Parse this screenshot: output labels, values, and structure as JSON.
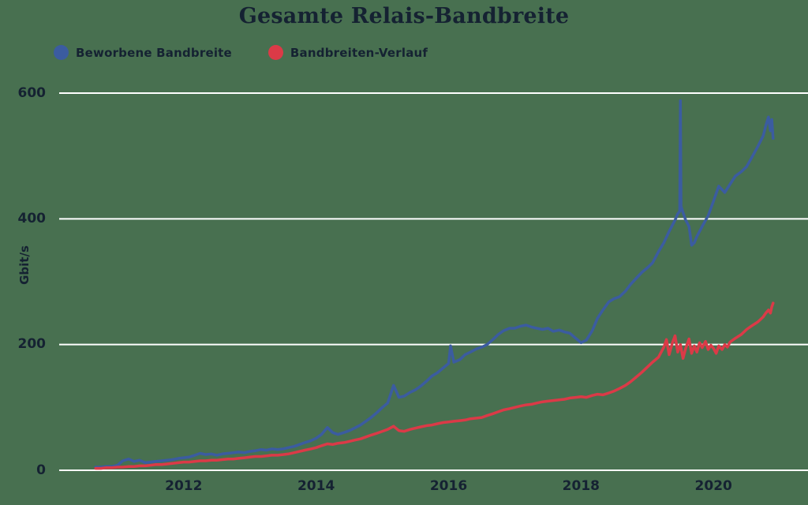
{
  "title": "Gesamte Relais-Bandbreite",
  "colors": {
    "background": "#487050",
    "text": "#152232",
    "grid": "#FFFFFF",
    "advertised_line": "#3B5CA0",
    "history_line": "#DB3A47"
  },
  "chart_data": {
    "type": "line",
    "title": "Gesamte Relais-Bandbreite",
    "xlabel": "",
    "ylabel": "Gbit/s",
    "x_ticks": [
      2012,
      2014,
      2016,
      2018,
      2020
    ],
    "y_ticks": [
      0,
      200,
      400,
      600
    ],
    "xlim": [
      2010.12,
      2021.32
    ],
    "ylim": [
      0,
      600
    ],
    "grid": "horizontal-only",
    "legend_position": "top-left",
    "series": [
      {
        "name": "Beworbene Bandbreite",
        "color": "#3B5CA0",
        "points": [
          [
            2010.67,
            5
          ],
          [
            2010.75,
            5
          ],
          [
            2010.83,
            6
          ],
          [
            2010.92,
            6
          ],
          [
            2011.0,
            8
          ],
          [
            2011.08,
            15
          ],
          [
            2011.17,
            18
          ],
          [
            2011.25,
            14
          ],
          [
            2011.33,
            16
          ],
          [
            2011.42,
            12
          ],
          [
            2011.5,
            13
          ],
          [
            2011.58,
            14
          ],
          [
            2011.67,
            15
          ],
          [
            2011.75,
            16
          ],
          [
            2011.83,
            17
          ],
          [
            2011.92,
            19
          ],
          [
            2012.0,
            20
          ],
          [
            2012.08,
            21
          ],
          [
            2012.17,
            24
          ],
          [
            2012.25,
            27
          ],
          [
            2012.33,
            25
          ],
          [
            2012.42,
            26
          ],
          [
            2012.5,
            24
          ],
          [
            2012.58,
            26
          ],
          [
            2012.67,
            27
          ],
          [
            2012.75,
            28
          ],
          [
            2012.83,
            29
          ],
          [
            2012.92,
            28
          ],
          [
            2013.0,
            30
          ],
          [
            2013.08,
            31
          ],
          [
            2013.17,
            33
          ],
          [
            2013.25,
            32
          ],
          [
            2013.33,
            34
          ],
          [
            2013.42,
            33
          ],
          [
            2013.5,
            34
          ],
          [
            2013.58,
            36
          ],
          [
            2013.67,
            38
          ],
          [
            2013.75,
            41
          ],
          [
            2013.83,
            44
          ],
          [
            2013.92,
            47
          ],
          [
            2014.0,
            51
          ],
          [
            2014.08,
            57
          ],
          [
            2014.17,
            68
          ],
          [
            2014.25,
            60
          ],
          [
            2014.33,
            57
          ],
          [
            2014.42,
            60
          ],
          [
            2014.5,
            63
          ],
          [
            2014.58,
            67
          ],
          [
            2014.67,
            72
          ],
          [
            2014.75,
            78
          ],
          [
            2014.83,
            84
          ],
          [
            2014.92,
            92
          ],
          [
            2015.0,
            100
          ],
          [
            2015.08,
            107
          ],
          [
            2015.17,
            135
          ],
          [
            2015.25,
            116
          ],
          [
            2015.33,
            118
          ],
          [
            2015.42,
            124
          ],
          [
            2015.5,
            128
          ],
          [
            2015.58,
            134
          ],
          [
            2015.67,
            142
          ],
          [
            2015.75,
            150
          ],
          [
            2015.83,
            155
          ],
          [
            2015.92,
            163
          ],
          [
            2016.0,
            170
          ],
          [
            2016.03,
            198
          ],
          [
            2016.08,
            172
          ],
          [
            2016.17,
            176
          ],
          [
            2016.25,
            184
          ],
          [
            2016.33,
            188
          ],
          [
            2016.42,
            193
          ],
          [
            2016.5,
            196
          ],
          [
            2016.58,
            200
          ],
          [
            2016.67,
            208
          ],
          [
            2016.75,
            216
          ],
          [
            2016.83,
            222
          ],
          [
            2016.92,
            226
          ],
          [
            2017.0,
            226
          ],
          [
            2017.08,
            229
          ],
          [
            2017.17,
            231
          ],
          [
            2017.25,
            228
          ],
          [
            2017.33,
            226
          ],
          [
            2017.42,
            224
          ],
          [
            2017.5,
            226
          ],
          [
            2017.58,
            221
          ],
          [
            2017.67,
            223
          ],
          [
            2017.75,
            220
          ],
          [
            2017.83,
            218
          ],
          [
            2017.92,
            210
          ],
          [
            2018.0,
            203
          ],
          [
            2018.08,
            207
          ],
          [
            2018.17,
            222
          ],
          [
            2018.25,
            242
          ],
          [
            2018.33,
            255
          ],
          [
            2018.42,
            268
          ],
          [
            2018.5,
            273
          ],
          [
            2018.58,
            276
          ],
          [
            2018.67,
            285
          ],
          [
            2018.75,
            296
          ],
          [
            2018.83,
            305
          ],
          [
            2018.92,
            315
          ],
          [
            2019.0,
            322
          ],
          [
            2019.08,
            330
          ],
          [
            2019.17,
            348
          ],
          [
            2019.25,
            362
          ],
          [
            2019.33,
            380
          ],
          [
            2019.42,
            398
          ],
          [
            2019.46,
            408
          ],
          [
            2019.49,
            412
          ],
          [
            2019.5,
            588
          ],
          [
            2019.51,
            420
          ],
          [
            2019.54,
            410
          ],
          [
            2019.58,
            398
          ],
          [
            2019.63,
            388
          ],
          [
            2019.67,
            358
          ],
          [
            2019.71,
            362
          ],
          [
            2019.75,
            372
          ],
          [
            2019.83,
            388
          ],
          [
            2019.92,
            405
          ],
          [
            2020.0,
            428
          ],
          [
            2020.08,
            452
          ],
          [
            2020.17,
            442
          ],
          [
            2020.25,
            455
          ],
          [
            2020.33,
            468
          ],
          [
            2020.42,
            475
          ],
          [
            2020.5,
            483
          ],
          [
            2020.58,
            498
          ],
          [
            2020.67,
            515
          ],
          [
            2020.75,
            532
          ],
          [
            2020.79,
            548
          ],
          [
            2020.83,
            562
          ],
          [
            2020.86,
            540
          ],
          [
            2020.88,
            558
          ],
          [
            2020.9,
            528
          ]
        ]
      },
      {
        "name": "Bandbreiten-Verlauf",
        "color": "#DB3A47",
        "points": [
          [
            2010.67,
            3
          ],
          [
            2010.75,
            3
          ],
          [
            2010.83,
            4
          ],
          [
            2010.92,
            4
          ],
          [
            2011.0,
            5
          ],
          [
            2011.08,
            5
          ],
          [
            2011.17,
            6
          ],
          [
            2011.25,
            6
          ],
          [
            2011.33,
            7
          ],
          [
            2011.42,
            7
          ],
          [
            2011.5,
            8
          ],
          [
            2011.58,
            9
          ],
          [
            2011.67,
            9
          ],
          [
            2011.75,
            10
          ],
          [
            2011.83,
            11
          ],
          [
            2011.92,
            12
          ],
          [
            2012.0,
            13
          ],
          [
            2012.08,
            13
          ],
          [
            2012.17,
            14
          ],
          [
            2012.25,
            15
          ],
          [
            2012.33,
            15
          ],
          [
            2012.42,
            16
          ],
          [
            2012.5,
            16
          ],
          [
            2012.58,
            17
          ],
          [
            2012.67,
            18
          ],
          [
            2012.75,
            18
          ],
          [
            2012.83,
            19
          ],
          [
            2012.92,
            20
          ],
          [
            2013.0,
            21
          ],
          [
            2013.08,
            22
          ],
          [
            2013.17,
            22
          ],
          [
            2013.25,
            23
          ],
          [
            2013.33,
            24
          ],
          [
            2013.42,
            24
          ],
          [
            2013.5,
            25
          ],
          [
            2013.58,
            26
          ],
          [
            2013.67,
            28
          ],
          [
            2013.75,
            30
          ],
          [
            2013.83,
            32
          ],
          [
            2013.92,
            34
          ],
          [
            2014.0,
            36
          ],
          [
            2014.08,
            39
          ],
          [
            2014.17,
            42
          ],
          [
            2014.25,
            41
          ],
          [
            2014.33,
            43
          ],
          [
            2014.42,
            44
          ],
          [
            2014.5,
            46
          ],
          [
            2014.58,
            48
          ],
          [
            2014.67,
            50
          ],
          [
            2014.75,
            53
          ],
          [
            2014.83,
            56
          ],
          [
            2014.92,
            59
          ],
          [
            2015.0,
            62
          ],
          [
            2015.08,
            65
          ],
          [
            2015.17,
            70
          ],
          [
            2015.25,
            63
          ],
          [
            2015.33,
            62
          ],
          [
            2015.42,
            65
          ],
          [
            2015.5,
            67
          ],
          [
            2015.58,
            69
          ],
          [
            2015.67,
            71
          ],
          [
            2015.75,
            72
          ],
          [
            2015.83,
            74
          ],
          [
            2015.92,
            76
          ],
          [
            2016.0,
            77
          ],
          [
            2016.08,
            78
          ],
          [
            2016.17,
            79
          ],
          [
            2016.25,
            80
          ],
          [
            2016.33,
            82
          ],
          [
            2016.42,
            83
          ],
          [
            2016.5,
            84
          ],
          [
            2016.58,
            87
          ],
          [
            2016.67,
            90
          ],
          [
            2016.75,
            93
          ],
          [
            2016.83,
            96
          ],
          [
            2016.92,
            98
          ],
          [
            2017.0,
            100
          ],
          [
            2017.08,
            102
          ],
          [
            2017.17,
            104
          ],
          [
            2017.25,
            105
          ],
          [
            2017.33,
            107
          ],
          [
            2017.42,
            109
          ],
          [
            2017.5,
            110
          ],
          [
            2017.58,
            111
          ],
          [
            2017.67,
            112
          ],
          [
            2017.75,
            113
          ],
          [
            2017.83,
            115
          ],
          [
            2017.92,
            116
          ],
          [
            2018.0,
            117
          ],
          [
            2018.08,
            116
          ],
          [
            2018.17,
            119
          ],
          [
            2018.25,
            121
          ],
          [
            2018.33,
            120
          ],
          [
            2018.42,
            123
          ],
          [
            2018.5,
            126
          ],
          [
            2018.58,
            130
          ],
          [
            2018.67,
            135
          ],
          [
            2018.75,
            141
          ],
          [
            2018.83,
            148
          ],
          [
            2018.92,
            156
          ],
          [
            2019.0,
            164
          ],
          [
            2019.08,
            172
          ],
          [
            2019.17,
            180
          ],
          [
            2019.25,
            196
          ],
          [
            2019.29,
            208
          ],
          [
            2019.33,
            184
          ],
          [
            2019.38,
            203
          ],
          [
            2019.42,
            214
          ],
          [
            2019.46,
            188
          ],
          [
            2019.5,
            200
          ],
          [
            2019.54,
            178
          ],
          [
            2019.58,
            194
          ],
          [
            2019.63,
            209
          ],
          [
            2019.67,
            186
          ],
          [
            2019.71,
            198
          ],
          [
            2019.75,
            188
          ],
          [
            2019.79,
            203
          ],
          [
            2019.83,
            195
          ],
          [
            2019.88,
            205
          ],
          [
            2019.92,
            192
          ],
          [
            2019.96,
            199
          ],
          [
            2020.0,
            194
          ],
          [
            2020.04,
            186
          ],
          [
            2020.08,
            198
          ],
          [
            2020.13,
            192
          ],
          [
            2020.17,
            200
          ],
          [
            2020.21,
            196
          ],
          [
            2020.25,
            204
          ],
          [
            2020.33,
            210
          ],
          [
            2020.42,
            216
          ],
          [
            2020.5,
            224
          ],
          [
            2020.58,
            230
          ],
          [
            2020.67,
            236
          ],
          [
            2020.75,
            244
          ],
          [
            2020.79,
            250
          ],
          [
            2020.83,
            255
          ],
          [
            2020.86,
            250
          ],
          [
            2020.88,
            260
          ],
          [
            2020.9,
            266
          ]
        ]
      }
    ]
  }
}
